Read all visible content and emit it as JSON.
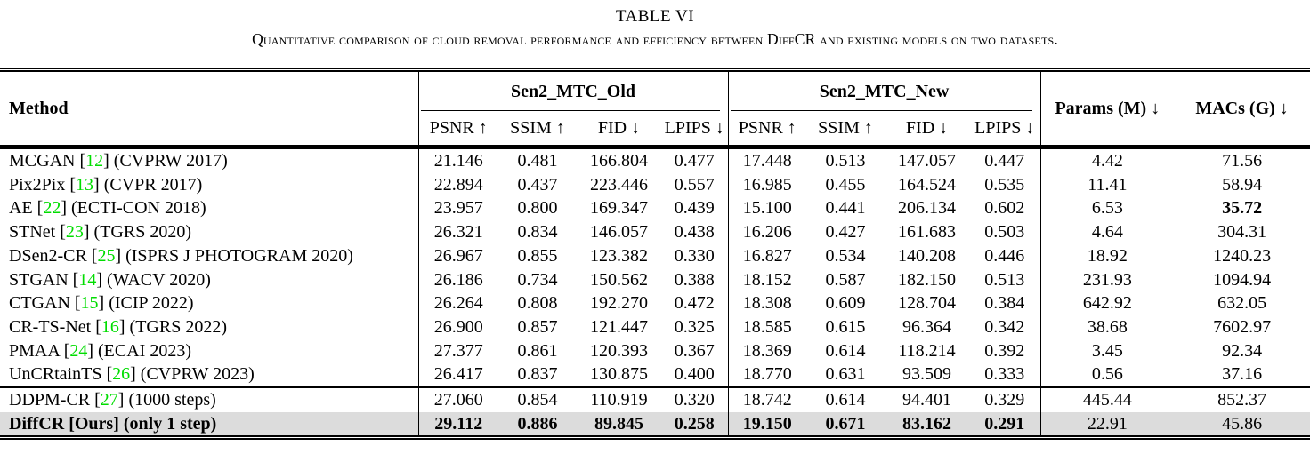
{
  "title": "TABLE VI",
  "caption": "Quantitative comparison of cloud removal performance and efficiency between DiffCR and existing models on two datasets.",
  "table": {
    "header": {
      "method": "Method",
      "group_old": "Sen2_MTC_Old",
      "group_new": "Sen2_MTC_New",
      "params": "Params (M) ↓",
      "macs": "MACs (G) ↓",
      "metrics": [
        "PSNR ↑",
        "SSIM ↑",
        "FID ↓",
        "LPIPS ↓"
      ]
    },
    "rows": [
      {
        "method": [
          {
            "t": "MCGAN ["
          },
          {
            "t": "12",
            "green": true
          },
          {
            "t": "] (CVPRW 2017)"
          }
        ],
        "old": [
          "21.146",
          "0.481",
          "166.804",
          "0.477"
        ],
        "new": [
          "17.448",
          "0.513",
          "147.057",
          "0.447"
        ],
        "params": "4.42",
        "macs": "71.56"
      },
      {
        "method": [
          {
            "t": "Pix2Pix ["
          },
          {
            "t": "13",
            "green": true
          },
          {
            "t": "] (CVPR 2017)"
          }
        ],
        "old": [
          "22.894",
          "0.437",
          "223.446",
          "0.557"
        ],
        "new": [
          "16.985",
          "0.455",
          "164.524",
          "0.535"
        ],
        "params": "11.41",
        "macs": "58.94"
      },
      {
        "method": [
          {
            "t": "AE ["
          },
          {
            "t": "22",
            "green": true
          },
          {
            "t": "] (ECTI-CON 2018)"
          }
        ],
        "old": [
          "23.957",
          "0.800",
          "169.347",
          "0.439"
        ],
        "new": [
          "15.100",
          "0.441",
          "206.134",
          "0.602"
        ],
        "params": "6.53",
        "macs": "35.72",
        "macs_bold": true
      },
      {
        "method": [
          {
            "t": "STNet ["
          },
          {
            "t": "23",
            "green": true
          },
          {
            "t": "] (TGRS 2020)"
          }
        ],
        "old": [
          "26.321",
          "0.834",
          "146.057",
          "0.438"
        ],
        "new": [
          "16.206",
          "0.427",
          "161.683",
          "0.503"
        ],
        "params": "4.64",
        "macs": "304.31"
      },
      {
        "method": [
          {
            "t": "DSen2-CR ["
          },
          {
            "t": "25",
            "green": true
          },
          {
            "t": "] (ISPRS J PHOTOGRAM 2020)"
          }
        ],
        "old": [
          "26.967",
          "0.855",
          "123.382",
          "0.330"
        ],
        "new": [
          "16.827",
          "0.534",
          "140.208",
          "0.446"
        ],
        "params": "18.92",
        "macs": "1240.23"
      },
      {
        "method": [
          {
            "t": "STGAN ["
          },
          {
            "t": "14",
            "green": true
          },
          {
            "t": "] (WACV 2020)"
          }
        ],
        "old": [
          "26.186",
          "0.734",
          "150.562",
          "0.388"
        ],
        "new": [
          "18.152",
          "0.587",
          "182.150",
          "0.513"
        ],
        "params": "231.93",
        "macs": "1094.94"
      },
      {
        "method": [
          {
            "t": "CTGAN ["
          },
          {
            "t": "15",
            "green": true
          },
          {
            "t": "] (ICIP 2022)"
          }
        ],
        "old": [
          "26.264",
          "0.808",
          "192.270",
          "0.472"
        ],
        "new": [
          "18.308",
          "0.609",
          "128.704",
          "0.384"
        ],
        "params": "642.92",
        "macs": "632.05"
      },
      {
        "method": [
          {
            "t": "CR-TS-Net ["
          },
          {
            "t": "16",
            "green": true
          },
          {
            "t": "] (TGRS 2022)"
          }
        ],
        "old": [
          "26.900",
          "0.857",
          "121.447",
          "0.325"
        ],
        "new": [
          "18.585",
          "0.615",
          "96.364",
          "0.342"
        ],
        "params": "38.68",
        "macs": "7602.97"
      },
      {
        "method": [
          {
            "t": "PMAA ["
          },
          {
            "t": "24",
            "green": true
          },
          {
            "t": "] (ECAI 2023)"
          }
        ],
        "old": [
          "27.377",
          "0.861",
          "120.393",
          "0.367"
        ],
        "new": [
          "18.369",
          "0.614",
          "118.214",
          "0.392"
        ],
        "params": "3.45",
        "macs": "92.34"
      },
      {
        "method": [
          {
            "t": "UnCRtainTS ["
          },
          {
            "t": "26",
            "green": true
          },
          {
            "t": "] (CVPRW 2023)"
          }
        ],
        "old": [
          "26.417",
          "0.837",
          "130.875",
          "0.400"
        ],
        "new": [
          "18.770",
          "0.631",
          "93.509",
          "0.333"
        ],
        "params": "0.56",
        "macs": "37.16"
      },
      {
        "method": [
          {
            "t": "DDPM-CR ["
          },
          {
            "t": "27",
            "green": true
          },
          {
            "t": "] (1000 steps)"
          }
        ],
        "old": [
          "27.060",
          "0.854",
          "110.919",
          "0.320"
        ],
        "new": [
          "18.742",
          "0.614",
          "94.401",
          "0.329"
        ],
        "params": "445.44",
        "macs": "852.37",
        "group_start": true
      },
      {
        "method": [
          {
            "t": "DiffCR [Ours] (only 1 step)"
          }
        ],
        "old": [
          "29.112",
          "0.886",
          "89.845",
          "0.258"
        ],
        "new": [
          "19.150",
          "0.671",
          "83.162",
          "0.291"
        ],
        "params": "22.91",
        "macs": "45.86",
        "bold": true,
        "highlight": true
      }
    ]
  }
}
